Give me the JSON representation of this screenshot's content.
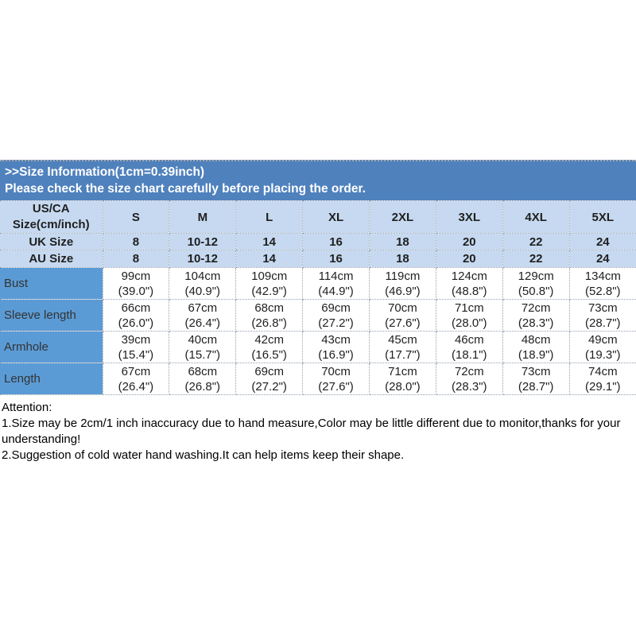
{
  "header": {
    "title": ">>Size Information(1cm=0.39inch)",
    "subtitle": "Please check the size chart carefully before placing the order."
  },
  "colors": {
    "header_bar_blue": "#4f81bd",
    "size_header_light_blue": "#c6d9f0",
    "measure_label_blue": "#5b9bd5",
    "dotted_border_gray": "#93a0b0"
  },
  "size_table": {
    "corner": {
      "line1": "US/CA",
      "line2": "Size(cm/inch)"
    },
    "sizes": [
      "S",
      "M",
      "L",
      "XL",
      "2XL",
      "3XL",
      "4XL",
      "5XL"
    ],
    "uk": {
      "label": "UK Size",
      "values": [
        "8",
        "10-12",
        "14",
        "16",
        "18",
        "20",
        "22",
        "24"
      ]
    },
    "au": {
      "label": "AU Size",
      "values": [
        "8",
        "10-12",
        "14",
        "16",
        "18",
        "20",
        "22",
        "24"
      ]
    },
    "rows": [
      {
        "label": "Bust",
        "cells": [
          {
            "cm": "99cm",
            "in": "(39.0\")"
          },
          {
            "cm": "104cm",
            "in": "(40.9\")"
          },
          {
            "cm": "109cm",
            "in": "(42.9\")"
          },
          {
            "cm": "114cm",
            "in": "(44.9\")"
          },
          {
            "cm": "119cm",
            "in": "(46.9\")"
          },
          {
            "cm": "124cm",
            "in": "(48.8\")"
          },
          {
            "cm": "129cm",
            "in": "(50.8\")"
          },
          {
            "cm": "134cm",
            "in": "(52.8\")"
          }
        ]
      },
      {
        "label": "Sleeve length",
        "cells": [
          {
            "cm": "66cm",
            "in": "(26.0\")"
          },
          {
            "cm": "67cm",
            "in": "(26.4\")"
          },
          {
            "cm": "68cm",
            "in": "(26.8\")"
          },
          {
            "cm": "69cm",
            "in": "(27.2\")"
          },
          {
            "cm": "70cm",
            "in": "(27.6\")"
          },
          {
            "cm": "71cm",
            "in": "(28.0\")"
          },
          {
            "cm": "72cm",
            "in": "(28.3\")"
          },
          {
            "cm": "73cm",
            "in": "(28.7\")"
          }
        ]
      },
      {
        "label": "Armhole",
        "cells": [
          {
            "cm": "39cm",
            "in": "(15.4\")"
          },
          {
            "cm": "40cm",
            "in": "(15.7\")"
          },
          {
            "cm": "42cm",
            "in": "(16.5\")"
          },
          {
            "cm": "43cm",
            "in": "(16.9\")"
          },
          {
            "cm": "45cm",
            "in": "(17.7\")"
          },
          {
            "cm": "46cm",
            "in": "(18.1\")"
          },
          {
            "cm": "48cm",
            "in": "(18.9\")"
          },
          {
            "cm": "49cm",
            "in": "(19.3\")"
          }
        ]
      },
      {
        "label": "Length",
        "cells": [
          {
            "cm": "67cm",
            "in": "(26.4\")"
          },
          {
            "cm": "68cm",
            "in": "(26.8\")"
          },
          {
            "cm": "69cm",
            "in": "(27.2\")"
          },
          {
            "cm": "70cm",
            "in": "(27.6\")"
          },
          {
            "cm": "71cm",
            "in": "(28.0\")"
          },
          {
            "cm": "72cm",
            "in": "(28.3\")"
          },
          {
            "cm": "73cm",
            "in": "(28.7\")"
          },
          {
            "cm": "74cm",
            "in": "(29.1\")"
          }
        ]
      }
    ]
  },
  "attention": {
    "title": "Attention:",
    "line1": "1.Size may be 2cm/1 inch inaccuracy due to hand measure,Color may be little different due to monitor,thanks for your understanding!",
    "line2": "2.Suggestion of cold water hand washing.It can help items keep their shape."
  }
}
